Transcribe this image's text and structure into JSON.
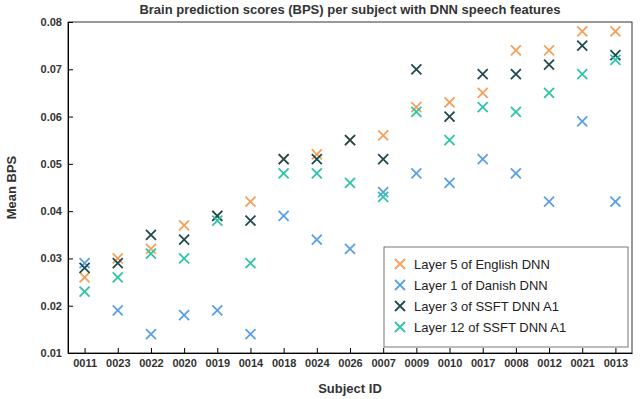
{
  "chart_data": {
    "type": "scatter",
    "title": "Brain prediction scores (BPS) per subject with DNN speech features",
    "x_label": "Subject ID",
    "y_label": "Mean BPS",
    "categories": [
      "0011",
      "0023",
      "0022",
      "0020",
      "0019",
      "0014",
      "0018",
      "0024",
      "0026",
      "0007",
      "0009",
      "0010",
      "0017",
      "0008",
      "0012",
      "0021",
      "0013"
    ],
    "series": [
      {
        "name": "Layer 5 of English DNN",
        "color": "#f5a05a",
        "marker": "x",
        "values": [
          0.026,
          0.03,
          0.032,
          0.037,
          0.039,
          0.042,
          0.051,
          0.052,
          0.055,
          0.056,
          0.062,
          0.063,
          0.065,
          0.074,
          0.074,
          0.078,
          0.078
        ]
      },
      {
        "name": "Layer 1 of Danish DNN",
        "color": "#5aa0e6",
        "marker": "x",
        "values": [
          0.029,
          0.019,
          0.014,
          0.018,
          0.019,
          0.014,
          0.039,
          0.034,
          0.032,
          0.044,
          0.048,
          0.046,
          0.051,
          0.048,
          0.042,
          0.059,
          0.042
        ]
      },
      {
        "name": "Layer 3 of SSFT DNN A1",
        "color": "#1e4a50",
        "marker": "x",
        "values": [
          0.028,
          0.029,
          0.035,
          0.034,
          0.039,
          0.038,
          0.051,
          0.051,
          0.055,
          0.051,
          0.07,
          0.06,
          0.069,
          0.069,
          0.071,
          0.075,
          0.073
        ]
      },
      {
        "name": "Layer 12 of SSFT DNN A1",
        "color": "#2ec4a8",
        "marker": "x",
        "values": [
          0.023,
          0.026,
          0.031,
          0.03,
          0.038,
          0.029,
          0.048,
          0.048,
          0.046,
          0.043,
          0.061,
          0.055,
          0.062,
          0.061,
          0.065,
          0.069,
          0.072
        ]
      }
    ],
    "ylim": [
      0.01,
      0.08
    ],
    "yticks": [
      0.01,
      0.02,
      0.03,
      0.04,
      0.05,
      0.06,
      0.07,
      0.08
    ],
    "grid": false,
    "legend": "lower right"
  }
}
